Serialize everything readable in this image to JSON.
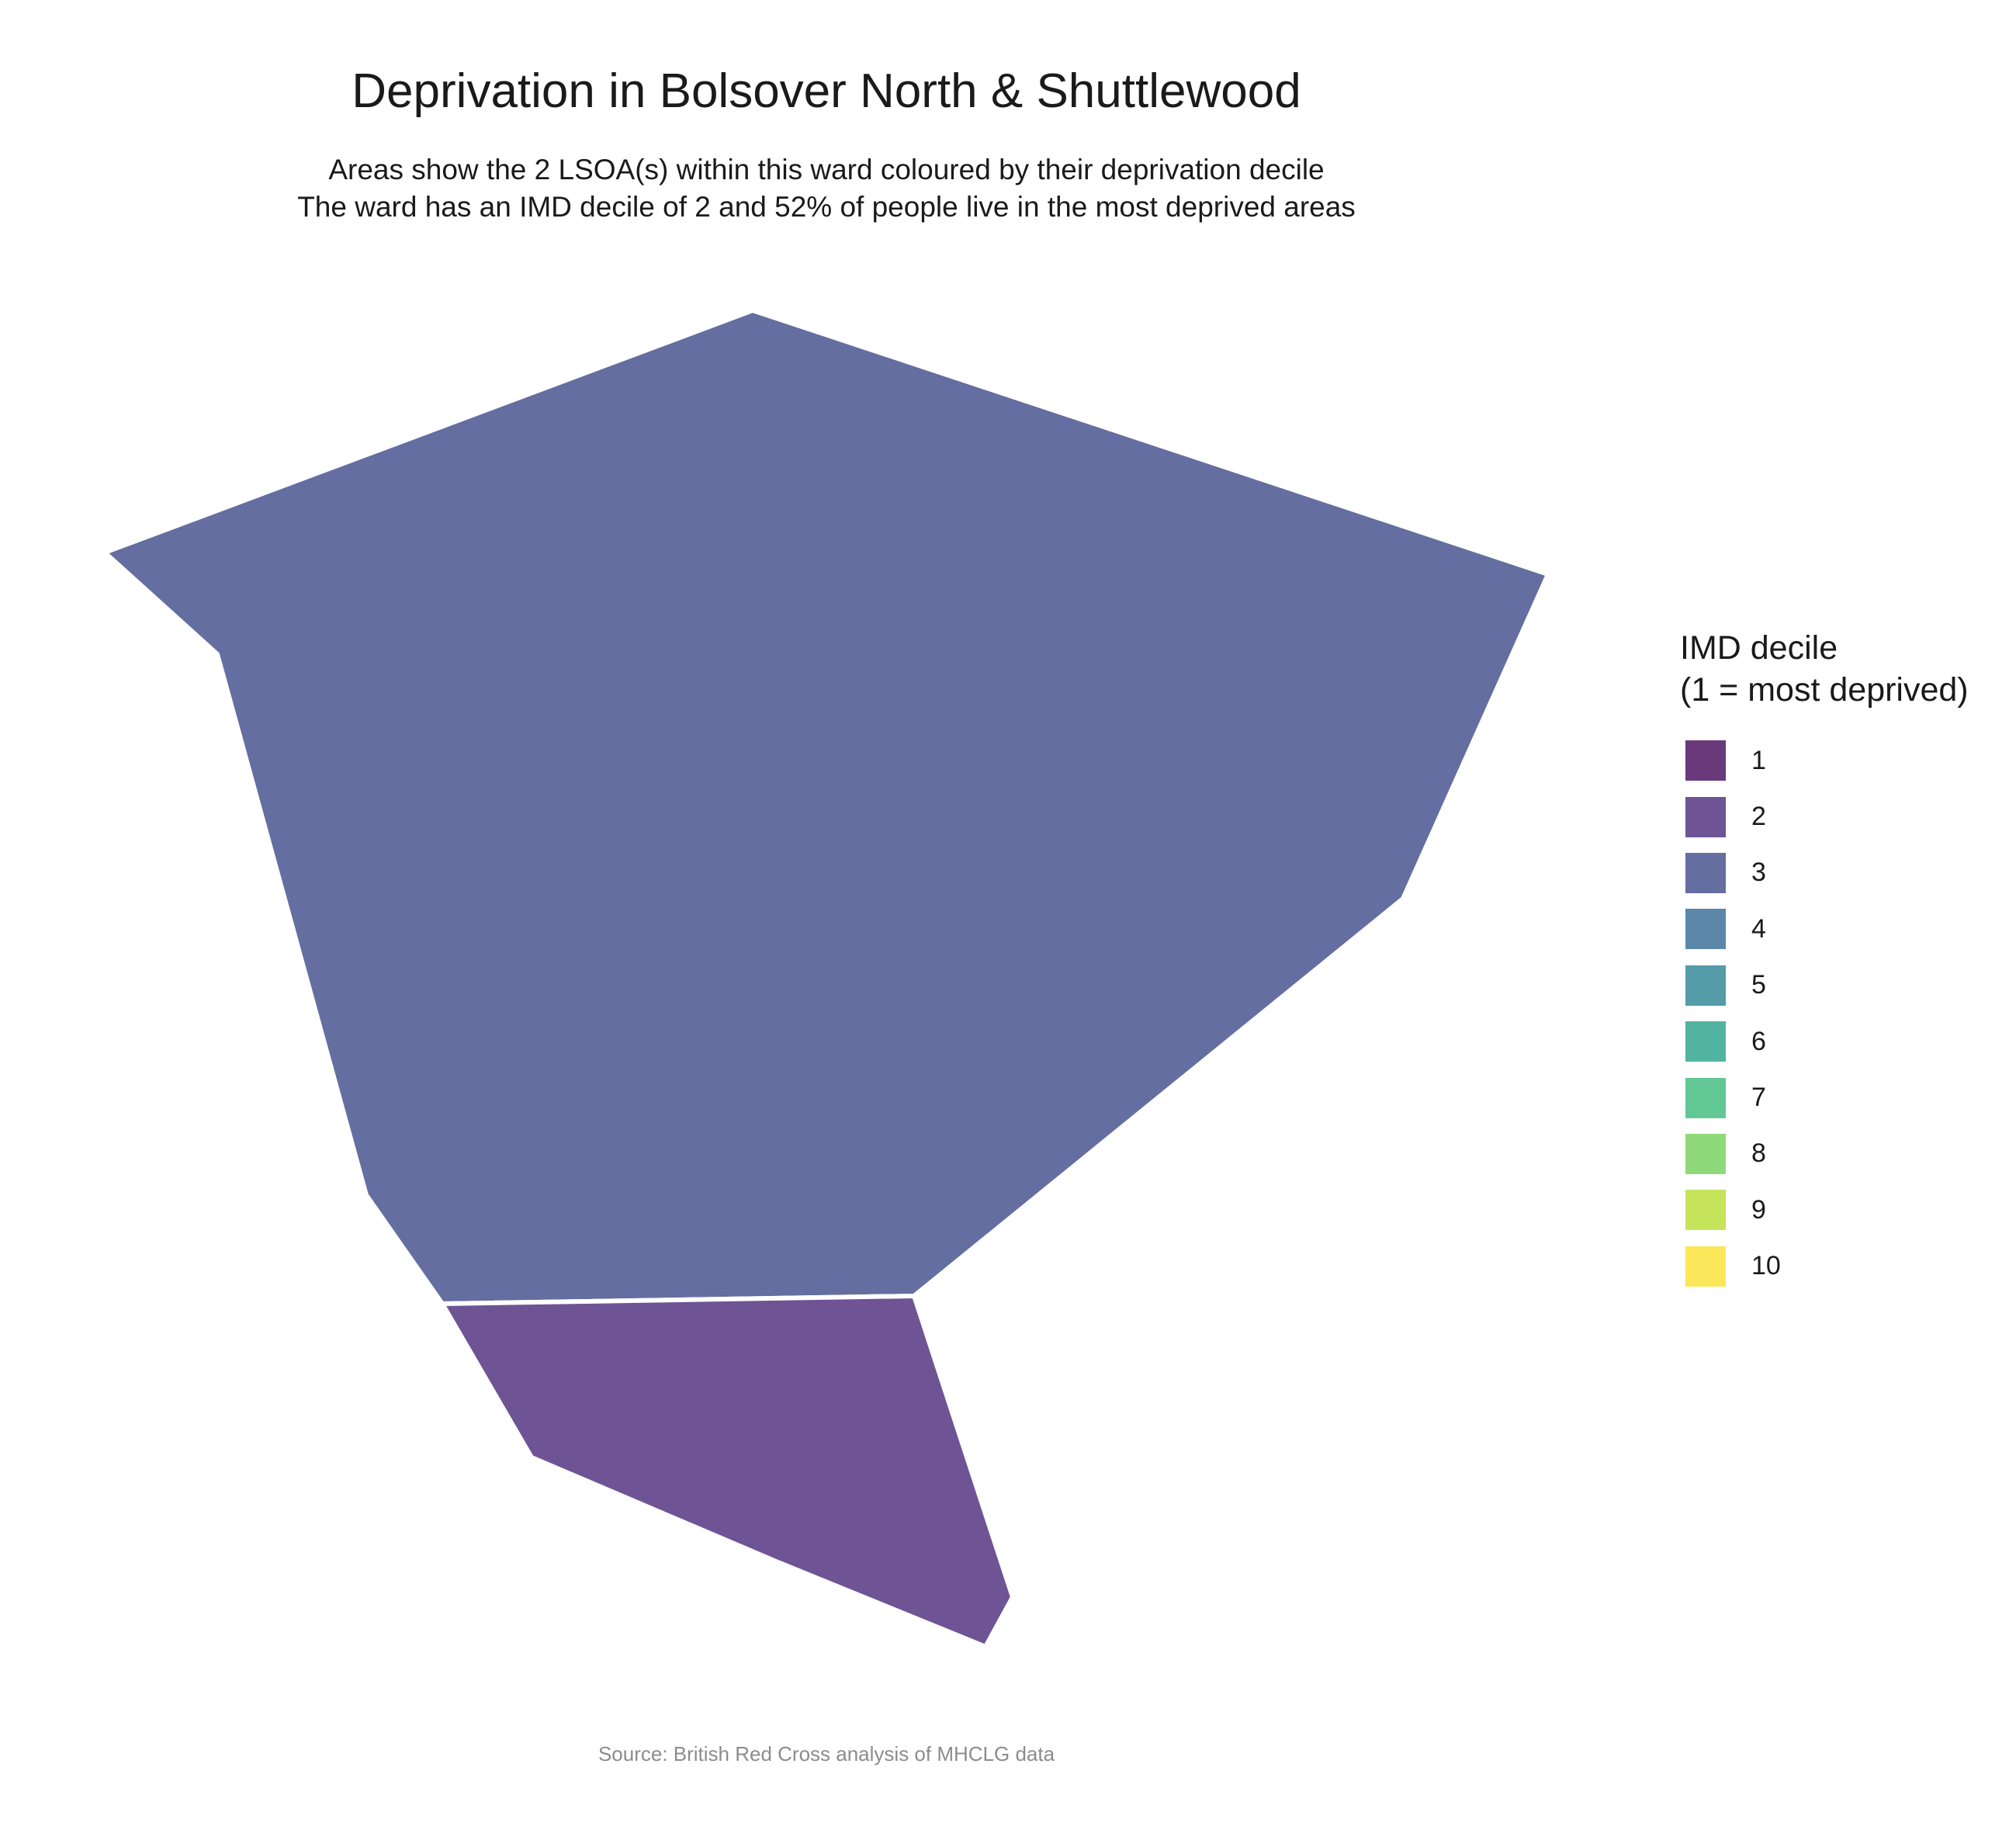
{
  "title": "Deprivation in Bolsover North & Shuttlewood",
  "subtitle_line1": "Areas show the 2 LSOA(s) within this ward coloured by their deprivation decile",
  "subtitle_line2": "The ward has an IMD decile of 2 and 52% of people live in the most deprived areas",
  "caption": "Source: British Red Cross analysis of MHCLG data",
  "legend": {
    "title_line1": "IMD decile",
    "title_line2": "(1 = most deprived)",
    "items": [
      {
        "label": "1",
        "color": "#6a3a7c"
      },
      {
        "label": "2",
        "color": "#6e5494"
      },
      {
        "label": "3",
        "color": "#646ea0"
      },
      {
        "label": "4",
        "color": "#5b88a8"
      },
      {
        "label": "5",
        "color": "#549ca8"
      },
      {
        "label": "6",
        "color": "#52b3a0"
      },
      {
        "label": "7",
        "color": "#61c895"
      },
      {
        "label": "8",
        "color": "#8fd97a"
      },
      {
        "label": "9",
        "color": "#c5e45c"
      },
      {
        "label": "10",
        "color": "#fbe75a"
      }
    ]
  },
  "map_data": {
    "lsoas": [
      {
        "decile": 3,
        "color": "#646ea0"
      },
      {
        "decile": 2,
        "color": "#6e5494"
      }
    ]
  }
}
